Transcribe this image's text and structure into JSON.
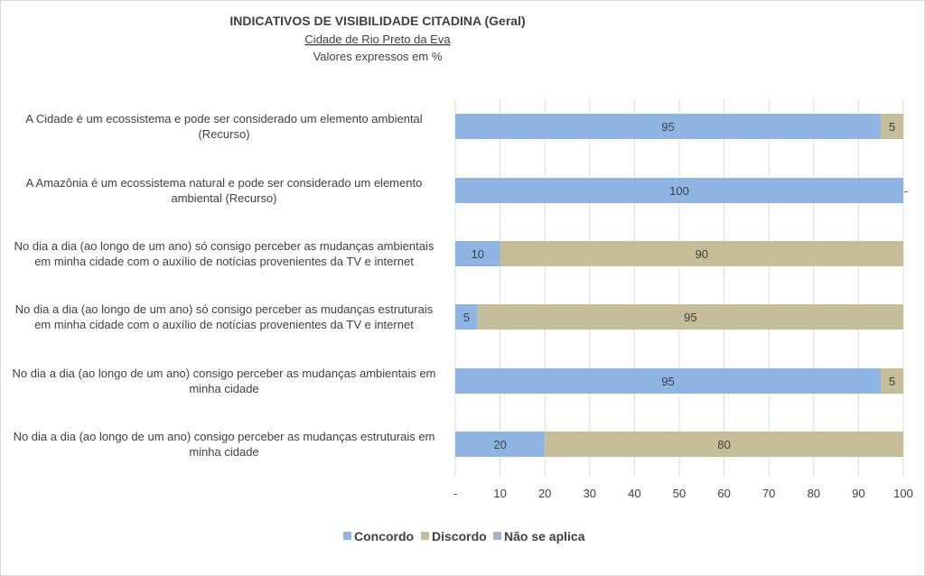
{
  "chart_data": {
    "type": "bar",
    "orientation": "horizontal",
    "stacked": true,
    "title": "INDICATIVOS DE VISIBILIDADE CITADINA (Geral)",
    "subtitle_1": "Cidade de Rio Preto da Eva",
    "subtitle_2": "Valores expressos em %",
    "categories": [
      [
        "A Cidade é um ecossistema e pode ser considerado um elemento ambiental",
        "(Recurso)"
      ],
      [
        "A Amazônia é um ecossistema natural e pode ser considerado um elemento",
        "ambiental (Recurso)"
      ],
      [
        "No dia a dia (ao longo de um ano) só consigo perceber as mudanças ambientais",
        "em minha cidade com o auxílio de notícias provenientes da TV e internet"
      ],
      [
        "No dia a dia (ao longo de um ano) só consigo perceber as mudanças estruturais",
        "em minha cidade com o auxílio de notícias provenientes da TV e internet"
      ],
      [
        "No dia a dia (ao longo de um ano) consigo perceber as mudanças ambientais em",
        "minha cidade"
      ],
      [
        "No dia a dia (ao longo de um ano) consigo perceber as mudanças estruturais em",
        "minha cidade"
      ]
    ],
    "series": [
      {
        "name": "Concordo",
        "color": "#8eb4e3",
        "values": [
          95,
          100,
          10,
          5,
          95,
          20
        ]
      },
      {
        "name": "Discordo",
        "color": "#c4bd97",
        "values": [
          5,
          0,
          90,
          95,
          5,
          80
        ]
      },
      {
        "name": "Não se aplica",
        "color": "#a5b5c8",
        "values": [
          0,
          0,
          0,
          0,
          0,
          0
        ]
      }
    ],
    "data_labels": [
      [
        "95",
        "100",
        "10",
        "5",
        "95",
        "20"
      ],
      [
        "5",
        "-",
        "90",
        "95",
        "5",
        "80"
      ],
      [
        "",
        "",
        "",
        "",
        "",
        ""
      ]
    ],
    "x_ticks": [
      "-",
      "10",
      "20",
      "30",
      "40",
      "50",
      "60",
      "70",
      "80",
      "90",
      "100"
    ],
    "xlim": [
      0,
      100
    ],
    "grid": true,
    "legend_position": "bottom"
  }
}
